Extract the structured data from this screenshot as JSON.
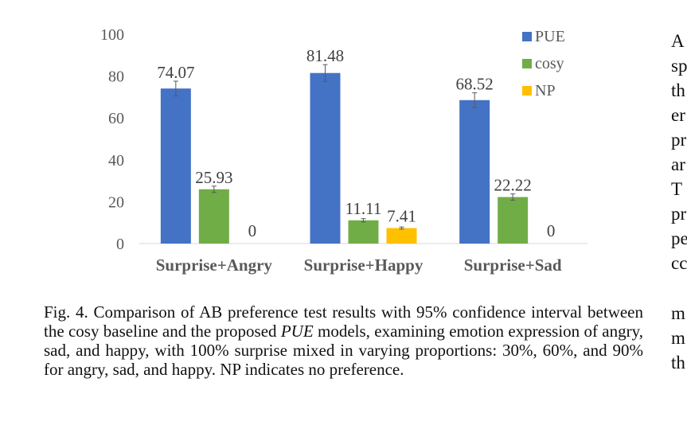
{
  "chart_data": {
    "type": "bar",
    "categories": [
      "Surprise+Angry",
      "Surprise+Happy",
      "Surprise+Sad"
    ],
    "series": [
      {
        "name": "PUE",
        "color": "#4472C4",
        "values": [
          74.07,
          81.48,
          68.52
        ],
        "labels": [
          "74.07",
          "81.48",
          "68.52"
        ],
        "error": [
          3.5,
          4.0,
          3.5
        ]
      },
      {
        "name": "cosy",
        "color": "#70AD47",
        "values": [
          25.93,
          11.11,
          22.22
        ],
        "labels": [
          "25.93",
          "11.11",
          "22.22"
        ],
        "error": [
          1.5,
          0.8,
          1.5
        ]
      },
      {
        "name": "NP",
        "color": "#FFC000",
        "values": [
          0,
          7.41,
          0
        ],
        "labels": [
          "0",
          "7.41",
          "0"
        ],
        "error": [
          null,
          0.5,
          null
        ]
      }
    ],
    "ylim": [
      0,
      100
    ],
    "yticks": [
      "0",
      "20",
      "40",
      "60",
      "80",
      "100"
    ],
    "ytick_values": [
      0,
      20,
      40,
      60,
      80,
      100
    ],
    "grid": false,
    "legend": "top-right",
    "title": "",
    "xlabel": "",
    "ylabel": ""
  },
  "caption": {
    "prefix": "Fig. 4.  Comparison of AB preference test results with 95% confidence interval between the cosy baseline and the proposed ",
    "model": "PUE",
    "suffix": " models, examining emotion expression of angry, sad, and happy, with 100% surprise mixed in varying proportions: 30%, 60%, and 90% for angry, sad, and happy. NP indicates no preference."
  },
  "right_column_fragments": [
    "A",
    "sp",
    "th",
    "er",
    "pr",
    "ar",
    "T",
    "pr",
    "pe",
    "cc",
    "m",
    "m",
    "th"
  ]
}
